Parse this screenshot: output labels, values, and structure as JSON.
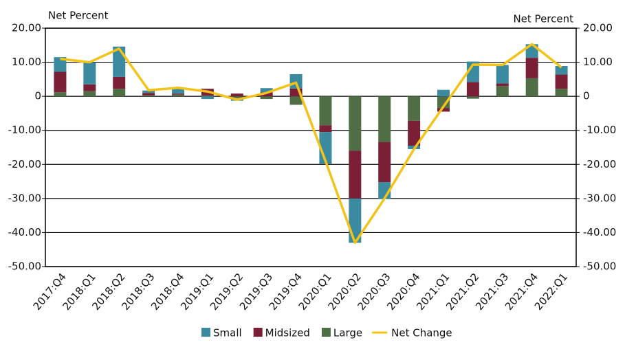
{
  "chart_data": {
    "type": "bar",
    "stacked": true,
    "y_label": "Net Percent",
    "y2_label": "Net Percent",
    "categories": [
      "2017:Q4",
      "2018:Q1",
      "2018:Q2",
      "2018:Q3",
      "2018:Q4",
      "2019:Q1",
      "2019:Q2",
      "2019:Q3",
      "2019:Q4",
      "2020:Q1",
      "2020:Q2",
      "2020:Q3",
      "2020:Q4",
      "2021:Q1",
      "2021:Q2",
      "2021:Q3",
      "2021:Q4",
      "2022:Q1"
    ],
    "series": [
      {
        "name": "Small",
        "color": "#3b8a9f",
        "values": [
          4.3,
          6.5,
          8.9,
          0.7,
          1.5,
          -0.8,
          -0.8,
          1.2,
          4.2,
          -9.3,
          -13,
          -5.0,
          -1.0,
          1.9,
          6.0,
          5.4,
          4.0,
          2.5
        ]
      },
      {
        "name": "Midsized",
        "color": "#7a1f36",
        "values": [
          6.0,
          2.0,
          3.5,
          0.7,
          0.3,
          2.0,
          0.8,
          1.2,
          2.3,
          -2,
          -14,
          -11.8,
          -7.3,
          -1.0,
          4.2,
          0.8,
          6.0,
          4.2
        ]
      },
      {
        "name": "Large",
        "color": "#4f6e46",
        "values": [
          1.2,
          1.5,
          2.2,
          0.3,
          0.5,
          0.2,
          -0.5,
          -0.8,
          -2.5,
          -8.5,
          -16,
          -13.4,
          -7.2,
          -3.5,
          -0.7,
          3.0,
          5.3,
          2.2
        ]
      },
      {
        "name": "Net Change",
        "type": "line",
        "color": "#f3c319",
        "values": [
          11,
          10,
          14,
          1.8,
          2.5,
          1.4,
          -1,
          1,
          4,
          -19,
          -43,
          -30,
          -15.5,
          -3,
          9.3,
          9.2,
          15.3,
          8.5
        ]
      }
    ],
    "ylim": [
      -50,
      20
    ],
    "yticks": [
      {
        "value": -50,
        "label": "-50.00"
      },
      {
        "value": -40,
        "label": "-40.00"
      },
      {
        "value": -30,
        "label": "-30.00"
      },
      {
        "value": -20,
        "label": "-20.00"
      },
      {
        "value": -10,
        "label": "-10.00"
      },
      0,
      {
        "value": 10,
        "label": "10.00"
      },
      {
        "value": 20,
        "label": "20.00"
      }
    ],
    "y2lim": [
      -50,
      20
    ],
    "y2ticks": [
      {
        "value": -50,
        "label": "-50.00"
      },
      {
        "value": -40,
        "label": "-40.00"
      },
      {
        "value": -30,
        "label": "-30.00"
      },
      {
        "value": -20,
        "label": "-20.00"
      },
      {
        "value": -10,
        "label": "-10.00"
      },
      0,
      {
        "value": 10,
        "label": "10.00"
      },
      {
        "value": 20,
        "label": "20.00"
      }
    ],
    "grid": true,
    "legend": "bottom"
  }
}
